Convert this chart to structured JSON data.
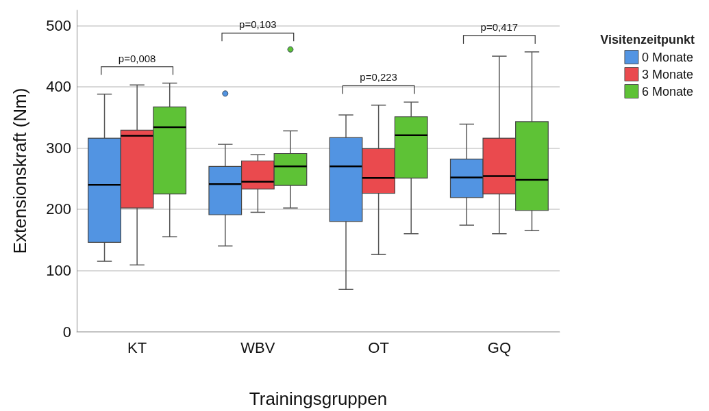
{
  "chart_data": {
    "type": "box",
    "xlabel": "Trainingsgruppen",
    "ylabel": "Extensionskraft (Nm)",
    "legend_title": "Visitenzeitpunkt",
    "categories": [
      "KT",
      "WBV",
      "OT",
      "GQ"
    ],
    "series": [
      {
        "name": "0 Monate",
        "color": "#5294e2",
        "boxes": [
          {
            "low": 115,
            "q1": 146,
            "median": 240,
            "q3": 316,
            "high": 388
          },
          {
            "low": 140,
            "q1": 191,
            "median": 241,
            "q3": 270,
            "high": 306,
            "outliers": [
              389
            ]
          },
          {
            "low": 69,
            "q1": 180,
            "median": 270,
            "q3": 317,
            "high": 354
          },
          {
            "low": 174,
            "q1": 219,
            "median": 252,
            "q3": 282,
            "high": 339
          }
        ]
      },
      {
        "name": "3 Monate",
        "color": "#ea4a4e",
        "boxes": [
          {
            "low": 109,
            "q1": 202,
            "median": 320,
            "q3": 329,
            "high": 403
          },
          {
            "low": 195,
            "q1": 233,
            "median": 245,
            "q3": 279,
            "high": 289
          },
          {
            "low": 126,
            "q1": 226,
            "median": 251,
            "q3": 299,
            "high": 370
          },
          {
            "low": 160,
            "q1": 225,
            "median": 254,
            "q3": 316,
            "high": 450
          }
        ]
      },
      {
        "name": "6 Monate",
        "color": "#5ec236",
        "boxes": [
          {
            "low": 155,
            "q1": 225,
            "median": 334,
            "q3": 367,
            "high": 406
          },
          {
            "low": 202,
            "q1": 239,
            "median": 270,
            "q3": 291,
            "high": 328,
            "outliers": [
              461
            ]
          },
          {
            "low": 160,
            "q1": 251,
            "median": 321,
            "q3": 351,
            "high": 375
          },
          {
            "low": 165,
            "q1": 198,
            "median": 248,
            "q3": 343,
            "high": 457
          }
        ]
      }
    ],
    "ylim": [
      0,
      525
    ],
    "yticks": [
      0,
      100,
      200,
      300,
      400,
      500
    ],
    "grid": "y",
    "legend": "right",
    "annotations": [
      "p=0,008",
      "p=0,103",
      "p=0,223",
      "p=0,417"
    ]
  }
}
